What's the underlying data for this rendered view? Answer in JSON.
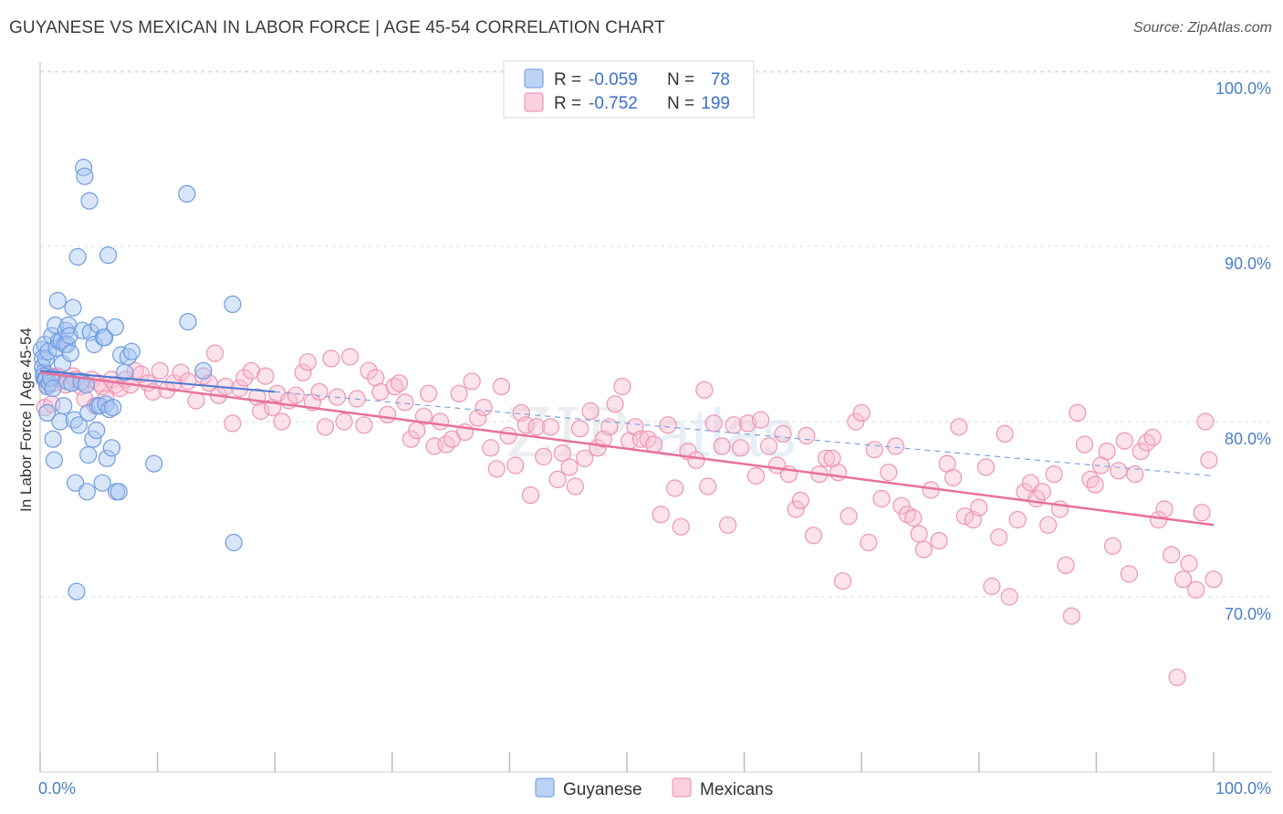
{
  "title": "GUYANESE VS MEXICAN IN LABOR FORCE | AGE 45-54 CORRELATION CHART",
  "source": "Source: ZipAtlas.com",
  "watermark": {
    "part1": "ZIP",
    "part2": "atlas"
  },
  "chart_data": {
    "type": "scatter",
    "title": "GUYANESE VS MEXICAN IN LABOR FORCE | AGE 45-54 CORRELATION CHART",
    "xlabel": "",
    "ylabel": "In Labor Force | Age 45-54",
    "xlim": [
      0,
      100
    ],
    "ylim": [
      62,
      103
    ],
    "x_tick_labels": [
      "0.0%",
      "100.0%"
    ],
    "y_ticks": [
      70,
      80,
      90,
      100
    ],
    "y_tick_labels": [
      "70.0%",
      "80.0%",
      "90.0%",
      "100.0%"
    ],
    "grid": true,
    "legend_position": "top-center",
    "colors": {
      "guyanese": "#8ab4ee",
      "mexicans": "#f4a6c0",
      "guyanese_line": "#4a78d2",
      "mexicans_line": "#e8709a",
      "tick_label": "#4a7fc8"
    },
    "stats": [
      {
        "series": "Guyanese",
        "r_label": "R =",
        "r": "-0.059",
        "n_label": "N =",
        "n": "78"
      },
      {
        "series": "Mexicans",
        "r_label": "R =",
        "r": "-0.752",
        "n_label": "N =",
        "n": "199"
      }
    ],
    "series": [
      {
        "name": "Guyanese",
        "trend": {
          "x": [
            0,
            100
          ],
          "y": [
            82.9,
            76.9
          ]
        },
        "points": [
          [
            0.1,
            84.1
          ],
          [
            0.2,
            83.6
          ],
          [
            0.2,
            83.1
          ],
          [
            0.3,
            82.8
          ],
          [
            0.3,
            82.6
          ],
          [
            0.4,
            82.4
          ],
          [
            0.4,
            84.4
          ],
          [
            0.5,
            83.6
          ],
          [
            0.5,
            82.4
          ],
          [
            0.6,
            80.5
          ],
          [
            0.6,
            82.0
          ],
          [
            0.7,
            84.0
          ],
          [
            0.8,
            82.2
          ],
          [
            0.9,
            82.5
          ],
          [
            1.0,
            84.9
          ],
          [
            1.1,
            81.9
          ],
          [
            1.1,
            79.0
          ],
          [
            1.2,
            77.8
          ],
          [
            1.3,
            85.5
          ],
          [
            1.4,
            84.2
          ],
          [
            1.5,
            86.9
          ],
          [
            1.6,
            84.6
          ],
          [
            1.7,
            80.0
          ],
          [
            1.8,
            84.6
          ],
          [
            1.9,
            83.3
          ],
          [
            2.0,
            80.9
          ],
          [
            2.1,
            84.4
          ],
          [
            2.2,
            85.2
          ],
          [
            2.3,
            84.4
          ],
          [
            2.3,
            82.3
          ],
          [
            2.4,
            85.5
          ],
          [
            2.5,
            84.9
          ],
          [
            2.6,
            83.9
          ],
          [
            2.7,
            82.2
          ],
          [
            2.8,
            86.5
          ],
          [
            2.9,
            80.1
          ],
          [
            3.0,
            76.5
          ],
          [
            3.1,
            70.3
          ],
          [
            3.2,
            89.4
          ],
          [
            3.3,
            79.8
          ],
          [
            3.5,
            82.3
          ],
          [
            3.6,
            85.2
          ],
          [
            3.7,
            94.5
          ],
          [
            3.8,
            94.0
          ],
          [
            3.9,
            82.1
          ],
          [
            4.0,
            76.0
          ],
          [
            4.1,
            80.5
          ],
          [
            4.1,
            78.1
          ],
          [
            4.2,
            92.6
          ],
          [
            4.3,
            85.1
          ],
          [
            4.5,
            79.0
          ],
          [
            4.6,
            84.4
          ],
          [
            4.8,
            79.5
          ],
          [
            4.9,
            80.9
          ],
          [
            5.0,
            85.5
          ],
          [
            5.1,
            80.9
          ],
          [
            5.3,
            76.5
          ],
          [
            5.4,
            84.8
          ],
          [
            5.5,
            84.8
          ],
          [
            5.6,
            81.0
          ],
          [
            5.7,
            77.9
          ],
          [
            5.8,
            89.5
          ],
          [
            5.9,
            80.7
          ],
          [
            6.1,
            78.5
          ],
          [
            6.2,
            80.8
          ],
          [
            6.4,
            85.4
          ],
          [
            6.5,
            76.0
          ],
          [
            6.7,
            76.0
          ],
          [
            6.9,
            83.8
          ],
          [
            7.2,
            82.8
          ],
          [
            7.5,
            83.7
          ],
          [
            7.8,
            84.0
          ],
          [
            9.7,
            77.6
          ],
          [
            12.5,
            93.0
          ],
          [
            12.6,
            85.7
          ],
          [
            13.9,
            82.9
          ],
          [
            16.4,
            86.7
          ],
          [
            16.5,
            73.1
          ]
        ]
      },
      {
        "name": "Mexicans",
        "trend": {
          "x": [
            0,
            100
          ],
          "y": [
            82.8,
            74.1
          ]
        },
        "points": [
          [
            0.3,
            82.5
          ],
          [
            0.4,
            80.8
          ],
          [
            0.6,
            82.1
          ],
          [
            0.9,
            82.6
          ],
          [
            1.0,
            81.0
          ],
          [
            1.2,
            82.2
          ],
          [
            1.5,
            82.6
          ],
          [
            1.7,
            82.5
          ],
          [
            2.2,
            82.1
          ],
          [
            2.8,
            82.6
          ],
          [
            3.0,
            82.4
          ],
          [
            3.5,
            82.0
          ],
          [
            3.8,
            81.3
          ],
          [
            4.4,
            82.4
          ],
          [
            4.7,
            80.9
          ],
          [
            5.0,
            82.2
          ],
          [
            5.3,
            82.0
          ],
          [
            5.6,
            81.3
          ],
          [
            6.1,
            82.4
          ],
          [
            6.4,
            82.1
          ],
          [
            6.8,
            81.9
          ],
          [
            7.3,
            82.4
          ],
          [
            7.7,
            82.1
          ],
          [
            8.1,
            82.9
          ],
          [
            8.6,
            82.7
          ],
          [
            9.2,
            82.2
          ],
          [
            9.6,
            81.7
          ],
          [
            10.2,
            82.9
          ],
          [
            10.8,
            81.8
          ],
          [
            11.4,
            82.2
          ],
          [
            12.0,
            82.8
          ],
          [
            12.6,
            82.3
          ],
          [
            13.3,
            81.2
          ],
          [
            13.9,
            82.6
          ],
          [
            14.4,
            82.2
          ],
          [
            14.9,
            83.9
          ],
          [
            15.2,
            81.5
          ],
          [
            15.8,
            82.0
          ],
          [
            16.4,
            79.9
          ],
          [
            17.0,
            81.9
          ],
          [
            17.4,
            82.5
          ],
          [
            18.0,
            82.9
          ],
          [
            18.5,
            81.4
          ],
          [
            18.8,
            80.6
          ],
          [
            19.2,
            82.6
          ],
          [
            19.8,
            80.8
          ],
          [
            20.2,
            81.6
          ],
          [
            20.6,
            80.0
          ],
          [
            21.2,
            81.2
          ],
          [
            21.8,
            81.5
          ],
          [
            22.4,
            82.8
          ],
          [
            22.8,
            83.4
          ],
          [
            23.2,
            81.1
          ],
          [
            23.8,
            81.7
          ],
          [
            24.3,
            79.7
          ],
          [
            24.8,
            83.6
          ],
          [
            25.3,
            81.4
          ],
          [
            25.9,
            80.0
          ],
          [
            26.4,
            83.7
          ],
          [
            27.0,
            81.3
          ],
          [
            27.6,
            79.8
          ],
          [
            28.0,
            82.9
          ],
          [
            28.6,
            82.5
          ],
          [
            29.0,
            81.7
          ],
          [
            29.6,
            80.4
          ],
          [
            30.2,
            82.0
          ],
          [
            30.6,
            82.2
          ],
          [
            31.1,
            81.1
          ],
          [
            31.6,
            79.0
          ],
          [
            32.1,
            79.5
          ],
          [
            32.7,
            80.3
          ],
          [
            33.1,
            81.6
          ],
          [
            33.6,
            78.6
          ],
          [
            34.1,
            80.0
          ],
          [
            34.6,
            78.7
          ],
          [
            35.1,
            79.0
          ],
          [
            35.7,
            81.6
          ],
          [
            36.2,
            79.4
          ],
          [
            36.8,
            82.3
          ],
          [
            37.3,
            80.2
          ],
          [
            37.8,
            80.8
          ],
          [
            38.4,
            78.5
          ],
          [
            38.9,
            77.3
          ],
          [
            39.3,
            82.0
          ],
          [
            39.9,
            79.2
          ],
          [
            40.5,
            77.5
          ],
          [
            41.0,
            80.5
          ],
          [
            41.4,
            79.8
          ],
          [
            41.8,
            75.8
          ],
          [
            42.3,
            79.7
          ],
          [
            42.9,
            78.0
          ],
          [
            43.5,
            79.7
          ],
          [
            44.1,
            76.7
          ],
          [
            44.5,
            78.2
          ],
          [
            45.1,
            77.4
          ],
          [
            45.6,
            76.3
          ],
          [
            46.0,
            79.6
          ],
          [
            46.4,
            77.9
          ],
          [
            46.9,
            80.6
          ],
          [
            47.5,
            78.5
          ],
          [
            48.0,
            79.0
          ],
          [
            48.5,
            79.7
          ],
          [
            49.0,
            81.0
          ],
          [
            49.6,
            82.0
          ],
          [
            50.2,
            78.9
          ],
          [
            50.7,
            79.7
          ],
          [
            51.2,
            79.0
          ],
          [
            51.8,
            79.0
          ],
          [
            52.3,
            78.7
          ],
          [
            52.9,
            74.7
          ],
          [
            53.5,
            79.8
          ],
          [
            54.1,
            76.2
          ],
          [
            54.6,
            74.0
          ],
          [
            55.2,
            78.3
          ],
          [
            55.9,
            77.8
          ],
          [
            56.6,
            81.8
          ],
          [
            56.9,
            76.3
          ],
          [
            57.4,
            79.9
          ],
          [
            58.1,
            78.6
          ],
          [
            58.6,
            74.1
          ],
          [
            59.1,
            79.8
          ],
          [
            59.7,
            78.5
          ],
          [
            60.3,
            79.9
          ],
          [
            61.0,
            76.9
          ],
          [
            61.4,
            80.1
          ],
          [
            62.1,
            78.6
          ],
          [
            62.8,
            77.5
          ],
          [
            63.3,
            79.3
          ],
          [
            63.8,
            77.0
          ],
          [
            64.4,
            75.0
          ],
          [
            64.8,
            75.5
          ],
          [
            65.3,
            79.2
          ],
          [
            65.9,
            73.5
          ],
          [
            66.4,
            77.0
          ],
          [
            67.0,
            77.9
          ],
          [
            67.5,
            77.9
          ],
          [
            68.0,
            77.1
          ],
          [
            68.4,
            70.9
          ],
          [
            68.9,
            74.6
          ],
          [
            69.5,
            80.0
          ],
          [
            70.0,
            80.5
          ],
          [
            70.6,
            73.1
          ],
          [
            71.1,
            78.4
          ],
          [
            71.7,
            75.6
          ],
          [
            72.3,
            77.1
          ],
          [
            72.9,
            78.6
          ],
          [
            73.4,
            75.2
          ],
          [
            73.9,
            74.7
          ],
          [
            74.4,
            74.5
          ],
          [
            74.9,
            73.6
          ],
          [
            75.3,
            72.7
          ],
          [
            75.9,
            76.1
          ],
          [
            76.6,
            73.2
          ],
          [
            77.3,
            77.6
          ],
          [
            77.8,
            76.8
          ],
          [
            78.3,
            79.7
          ],
          [
            78.8,
            74.6
          ],
          [
            79.5,
            74.4
          ],
          [
            80.0,
            75.1
          ],
          [
            80.6,
            77.4
          ],
          [
            81.1,
            70.6
          ],
          [
            81.7,
            73.4
          ],
          [
            82.2,
            79.3
          ],
          [
            82.6,
            70.0
          ],
          [
            83.3,
            74.4
          ],
          [
            83.9,
            76.0
          ],
          [
            84.4,
            76.5
          ],
          [
            84.9,
            75.6
          ],
          [
            85.4,
            76.0
          ],
          [
            85.9,
            74.1
          ],
          [
            86.4,
            77.0
          ],
          [
            86.9,
            75.0
          ],
          [
            87.4,
            71.8
          ],
          [
            87.9,
            68.9
          ],
          [
            88.4,
            80.5
          ],
          [
            89.0,
            78.7
          ],
          [
            89.5,
            76.7
          ],
          [
            89.9,
            76.4
          ],
          [
            90.4,
            77.5
          ],
          [
            90.9,
            78.3
          ],
          [
            91.4,
            72.9
          ],
          [
            91.9,
            77.2
          ],
          [
            92.4,
            78.9
          ],
          [
            92.8,
            71.3
          ],
          [
            93.3,
            77.0
          ],
          [
            93.8,
            78.3
          ],
          [
            94.3,
            78.8
          ],
          [
            94.8,
            79.1
          ],
          [
            95.3,
            74.4
          ],
          [
            95.8,
            75.0
          ],
          [
            96.4,
            72.4
          ],
          [
            96.9,
            65.4
          ],
          [
            97.4,
            71.0
          ],
          [
            97.9,
            71.9
          ],
          [
            98.5,
            70.4
          ],
          [
            99.0,
            74.8
          ],
          [
            99.3,
            80.0
          ],
          [
            99.6,
            77.8
          ],
          [
            100.0,
            71.0
          ]
        ]
      }
    ]
  }
}
